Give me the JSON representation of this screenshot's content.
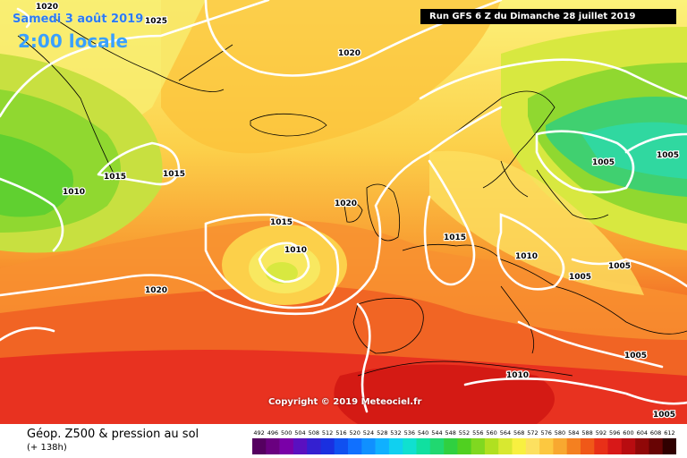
{
  "header": {
    "date": "Samedi 3 août 2019",
    "time": "2:00 locale",
    "run": "Run GFS 6 Z du Dimanche 28 juillet 2019"
  },
  "copyright": "Copyright © 2019 Meteociel.fr",
  "legend": {
    "title": "Géop. Z500 & pression au sol",
    "subtitle": "(+ 138h)",
    "scale_values": [
      "492",
      "496",
      "500",
      "504",
      "508",
      "512",
      "516",
      "520",
      "524",
      "528",
      "532",
      "536",
      "540",
      "544",
      "548",
      "552",
      "556",
      "560",
      "564",
      "568",
      "572",
      "576",
      "580",
      "584",
      "588",
      "592",
      "596",
      "600",
      "604",
      "608",
      "612"
    ],
    "scale_colors": [
      "#550060",
      "#6a0080",
      "#7a00a8",
      "#5a10c0",
      "#3420d0",
      "#1a30e0",
      "#1050f0",
      "#1070ff",
      "#1090ff",
      "#10b0ff",
      "#10d0f0",
      "#10e0d0",
      "#10e0a0",
      "#20d870",
      "#30d040",
      "#50d020",
      "#80d820",
      "#b0e020",
      "#d8e830",
      "#f8f040",
      "#fce060",
      "#fcc840",
      "#f8a830",
      "#f48020",
      "#f05818",
      "#e83018",
      "#d81818",
      "#b80c10",
      "#900808",
      "#680404",
      "#300000"
    ]
  },
  "isobars": {
    "labels": [
      {
        "text": "1020"
      },
      {
        "text": "1025"
      },
      {
        "text": "1020"
      },
      {
        "text": "1015"
      },
      {
        "text": "1015"
      },
      {
        "text": "1010"
      },
      {
        "text": "1020"
      },
      {
        "text": "1015"
      },
      {
        "text": "1010"
      },
      {
        "text": "1020"
      },
      {
        "text": "1015"
      },
      {
        "text": "1010"
      },
      {
        "text": "1005"
      },
      {
        "text": "1005"
      },
      {
        "text": "1005"
      },
      {
        "text": "1005"
      },
      {
        "text": "1010"
      },
      {
        "text": "1005"
      }
    ]
  }
}
